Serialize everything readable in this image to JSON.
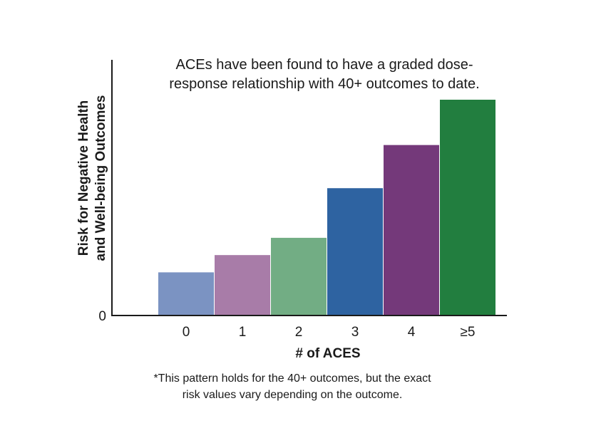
{
  "chart_data": {
    "type": "bar",
    "title_lines": [
      "ACEs have been found to have a graded dose-",
      "response relationship with 40+ outcomes to date."
    ],
    "ylabel_lines": [
      "Risk for Negative Health",
      "and Well-being Outcomes"
    ],
    "xlabel": "# of ACES",
    "categories": [
      "0",
      "1",
      "2",
      "3",
      "4",
      "≥5"
    ],
    "values": [
      20,
      28,
      36,
      59,
      79,
      100
    ],
    "ylim": [
      0,
      120
    ],
    "y_tick_labels": [
      "0"
    ],
    "colors": [
      "#7b93c2",
      "#a87ca8",
      "#72ad84",
      "#2e63a1",
      "#74397a",
      "#227e3f"
    ],
    "grid": false,
    "legend": "none"
  },
  "footnote_lines": [
    "*This pattern holds for the 40+ outcomes, but the exact",
    "risk values vary depending on the outcome."
  ]
}
